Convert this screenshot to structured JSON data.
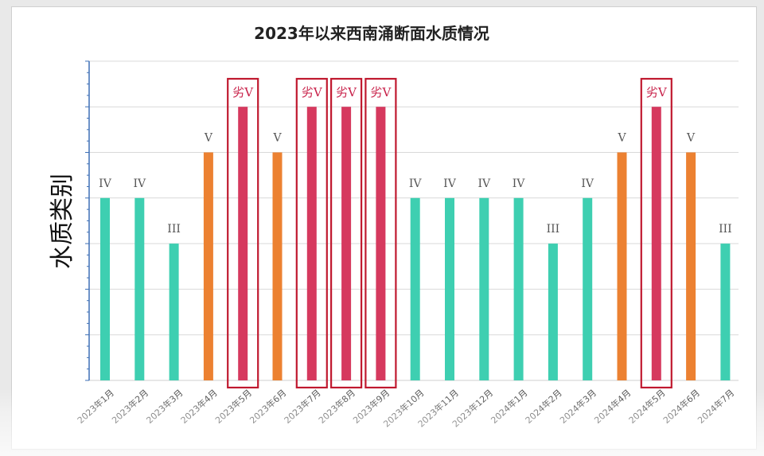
{
  "chart_data": {
    "type": "bar",
    "title": "2023年以来西南涌断面水质情况",
    "ylabel": "水质类别",
    "xlabel": "",
    "categories": [
      "2023年1月",
      "2023年2月",
      "2023年3月",
      "2023年4月",
      "2023年5月",
      "2023年6月",
      "2023年7月",
      "2023年8月",
      "2023年9月",
      "2023年10月",
      "2023年11月",
      "2023年12月",
      "2024年1月",
      "2024年2月",
      "2024年3月",
      "2024年4月",
      "2024年5月",
      "2024年6月",
      "2024年7月"
    ],
    "values": [
      4,
      4,
      3,
      5,
      6,
      5,
      6,
      6,
      6,
      4,
      4,
      4,
      4,
      3,
      4,
      5,
      6,
      5,
      3
    ],
    "labels": [
      "IV",
      "IV",
      "III",
      "V",
      "劣V",
      "V",
      "劣V",
      "劣V",
      "劣V",
      "IV",
      "IV",
      "IV",
      "IV",
      "III",
      "IV",
      "V",
      "劣V",
      "V",
      "III"
    ],
    "highlighted": [
      false,
      false,
      false,
      false,
      true,
      false,
      true,
      true,
      true,
      false,
      false,
      false,
      false,
      false,
      false,
      false,
      true,
      false,
      false
    ],
    "ylim": [
      0,
      7
    ],
    "grid": true,
    "colors": {
      "class_III_IV": "#3ecfb1",
      "class_V": "#ec8131",
      "class_worse_V": "#d6395e",
      "highlight_box": "#c0192f"
    }
  }
}
